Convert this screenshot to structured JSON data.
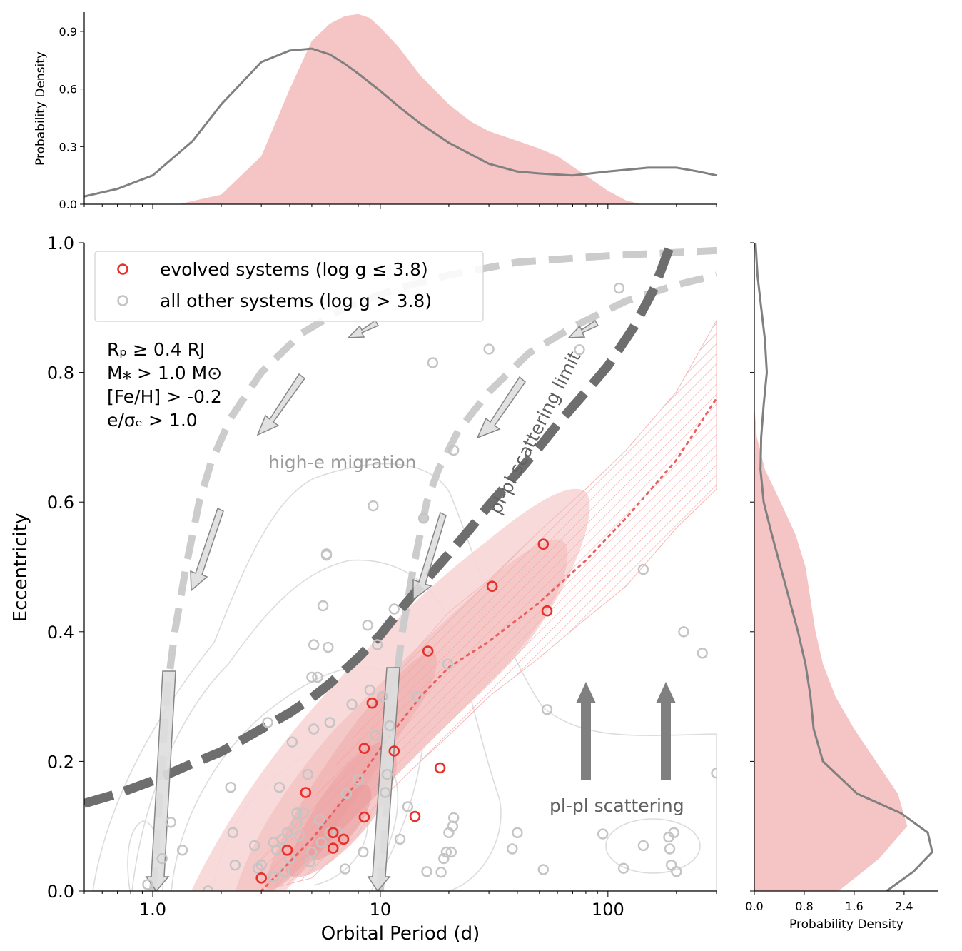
{
  "chart_data": {
    "type": "scatter",
    "title": "",
    "xlabel": "Orbital Period (d)",
    "ylabel": "Eccentricity",
    "xscale": "log",
    "xlim": [
      0.5,
      300
    ],
    "ylim": [
      0.0,
      1.0
    ],
    "x_tick_labels": [
      "1.0",
      "10",
      "100"
    ],
    "y_tick_labels": [
      "0.0",
      "0.2",
      "0.4",
      "0.6",
      "0.8",
      "1.0"
    ],
    "legend": {
      "position": "top-left",
      "entries": [
        {
          "label": "evolved systems (log g ≤ 3.8)",
          "color": "#e8302a"
        },
        {
          "label": "all other systems (log g > 3.8)",
          "color": "#c4c4c4"
        }
      ]
    },
    "criteria": [
      "Rₚ ≥ 0.4 R⁣J",
      "M⁎ > 1.0 M⊙",
      "[Fe/H] > -0.2",
      "e/σₑ > 1.0"
    ],
    "annotations": {
      "high_e": "high-e migration",
      "scatter_limit": "pl-pl scattering limit",
      "scattering": "pl-pl scattering"
    },
    "series": [
      {
        "name": "evolved systems (log g ≤ 3.8)",
        "color": "#e8302a",
        "points": [
          [
            3.0,
            0.02
          ],
          [
            3.9,
            0.063
          ],
          [
            4.7,
            0.152
          ],
          [
            6.2,
            0.09
          ],
          [
            6.2,
            0.066
          ],
          [
            6.9,
            0.08
          ],
          [
            8.5,
            0.114
          ],
          [
            8.5,
            0.22
          ],
          [
            9.2,
            0.29
          ],
          [
            11.5,
            0.216
          ],
          [
            14.2,
            0.115
          ],
          [
            16.2,
            0.37
          ],
          [
            18.3,
            0.19
          ],
          [
            31.0,
            0.47
          ],
          [
            52.0,
            0.535
          ],
          [
            54.0,
            0.432
          ]
        ]
      },
      {
        "name": "all other systems (log g > 3.8)",
        "color": "#c4c4c4",
        "points": [
          [
            0.95,
            0.01
          ],
          [
            1.1,
            0.05
          ],
          [
            1.2,
            0.106
          ],
          [
            1.35,
            0.063
          ],
          [
            1.75,
            0.0
          ],
          [
            2.2,
            0.16
          ],
          [
            2.25,
            0.09
          ],
          [
            2.3,
            0.04
          ],
          [
            2.8,
            0.07
          ],
          [
            2.9,
            0.035
          ],
          [
            3.0,
            0.04
          ],
          [
            3.2,
            0.26
          ],
          [
            3.4,
            0.022
          ],
          [
            3.4,
            0.075
          ],
          [
            3.5,
            0.063
          ],
          [
            3.6,
            0.16
          ],
          [
            3.7,
            0.08
          ],
          [
            3.8,
            0.03
          ],
          [
            3.9,
            0.09
          ],
          [
            4.0,
            0.05
          ],
          [
            4.1,
            0.23
          ],
          [
            4.3,
            0.12
          ],
          [
            4.3,
            0.105
          ],
          [
            4.4,
            0.085
          ],
          [
            4.6,
            0.12
          ],
          [
            4.8,
            0.18
          ],
          [
            4.9,
            0.045
          ],
          [
            5.0,
            0.33
          ],
          [
            5.0,
            0.06
          ],
          [
            5.1,
            0.25
          ],
          [
            5.1,
            0.38
          ],
          [
            5.3,
            0.33
          ],
          [
            5.4,
            0.11
          ],
          [
            5.5,
            0.075
          ],
          [
            5.6,
            0.44
          ],
          [
            5.8,
            0.52
          ],
          [
            5.8,
            0.518
          ],
          [
            5.9,
            0.376
          ],
          [
            6.0,
            0.26
          ],
          [
            6.0,
            0.09
          ],
          [
            6.5,
            0.09
          ],
          [
            7.0,
            0.034
          ],
          [
            7.1,
            0.15
          ],
          [
            7.5,
            0.288
          ],
          [
            8.0,
            0.172
          ],
          [
            8.4,
            0.06
          ],
          [
            8.8,
            0.41
          ],
          [
            9.0,
            0.31
          ],
          [
            9.3,
            0.594
          ],
          [
            9.5,
            0.24
          ],
          [
            9.7,
            0.38
          ],
          [
            10.2,
            0.3
          ],
          [
            10.5,
            0.152
          ],
          [
            10.7,
            0.18
          ],
          [
            11.0,
            0.255
          ],
          [
            11.5,
            0.435
          ],
          [
            12.2,
            0.08
          ],
          [
            13.2,
            0.13
          ],
          [
            14.5,
            0.3
          ],
          [
            15.5,
            0.575
          ],
          [
            16.0,
            0.03
          ],
          [
            18.5,
            0.029
          ],
          [
            19.0,
            0.05
          ],
          [
            19.5,
            0.06
          ],
          [
            19.8,
            0.35
          ],
          [
            20.0,
            0.09
          ],
          [
            20.5,
            0.06
          ],
          [
            20.8,
            0.1
          ],
          [
            21.0,
            0.68
          ],
          [
            21.0,
            0.113
          ],
          [
            17.0,
            0.815
          ],
          [
            30.0,
            0.836
          ],
          [
            38.0,
            0.065
          ],
          [
            40.0,
            0.09
          ],
          [
            52.0,
            0.033
          ],
          [
            54.0,
            0.28
          ],
          [
            75.0,
            0.835
          ],
          [
            95.0,
            0.088
          ],
          [
            112.0,
            0.93
          ],
          [
            117.0,
            0.035
          ],
          [
            143.0,
            0.07
          ],
          [
            143.0,
            0.496
          ],
          [
            185.0,
            0.083
          ],
          [
            187.0,
            0.065
          ],
          [
            190.0,
            0.04
          ],
          [
            195.0,
            0.09
          ],
          [
            200.0,
            0.03
          ],
          [
            215.0,
            0.4
          ],
          [
            260.0,
            0.367
          ],
          [
            300.0,
            0.182
          ]
        ]
      }
    ],
    "top_panel": {
      "type": "area",
      "ylabel": "Probability Density",
      "ylim": [
        0.0,
        1.0
      ],
      "y_tick_labels": [
        "0.0",
        "0.3",
        "0.6",
        "0.9"
      ],
      "evolved_density": {
        "period": [
          1.3,
          2.0,
          3.0,
          4.0,
          5.0,
          6.0,
          7.0,
          8.0,
          9.0,
          10.0,
          12.0,
          15.0,
          20.0,
          25.0,
          30.0,
          40.0,
          50.0,
          60.0,
          80.0,
          100.0,
          120.0,
          140.0
        ],
        "density": [
          0.0,
          0.05,
          0.25,
          0.6,
          0.85,
          0.94,
          0.98,
          0.99,
          0.97,
          0.92,
          0.82,
          0.67,
          0.52,
          0.43,
          0.38,
          0.33,
          0.29,
          0.25,
          0.15,
          0.07,
          0.02,
          0.0
        ]
      },
      "other_density": {
        "period": [
          0.5,
          0.7,
          1.0,
          1.5,
          2.0,
          3.0,
          4.0,
          5.0,
          6.0,
          7.0,
          8.0,
          10.0,
          12.0,
          15.0,
          20.0,
          30.0,
          40.0,
          50.0,
          70.0,
          100.0,
          150.0,
          200.0,
          250.0,
          300.0
        ],
        "density": [
          0.04,
          0.08,
          0.15,
          0.33,
          0.52,
          0.74,
          0.8,
          0.81,
          0.78,
          0.73,
          0.68,
          0.59,
          0.51,
          0.42,
          0.32,
          0.21,
          0.17,
          0.16,
          0.15,
          0.17,
          0.19,
          0.19,
          0.17,
          0.15
        ]
      }
    },
    "right_panel": {
      "type": "area",
      "xlabel": "Probability Density",
      "xlim": [
        0.0,
        2.95
      ],
      "x_tick_labels": [
        "0.0",
        "0.8",
        "1.6",
        "2.4"
      ],
      "evolved_density": {
        "ecc": [
          0.0,
          0.05,
          0.1,
          0.15,
          0.2,
          0.25,
          0.3,
          0.35,
          0.4,
          0.45,
          0.5,
          0.55,
          0.6,
          0.65,
          0.7,
          0.75
        ],
        "density": [
          1.35,
          2.0,
          2.45,
          2.3,
          1.95,
          1.6,
          1.3,
          1.1,
          0.98,
          0.9,
          0.82,
          0.66,
          0.42,
          0.17,
          0.04,
          0.0
        ]
      },
      "other_density": {
        "ecc": [
          0.0,
          0.03,
          0.06,
          0.09,
          0.12,
          0.15,
          0.2,
          0.25,
          0.3,
          0.35,
          0.4,
          0.45,
          0.5,
          0.55,
          0.6,
          0.65,
          0.7,
          0.75,
          0.8,
          0.85,
          0.9,
          0.95,
          1.0
        ],
        "density": [
          2.12,
          2.55,
          2.85,
          2.78,
          2.35,
          1.65,
          1.1,
          0.95,
          0.9,
          0.82,
          0.7,
          0.56,
          0.42,
          0.28,
          0.15,
          0.1,
          0.11,
          0.15,
          0.2,
          0.17,
          0.11,
          0.05,
          0.02
        ]
      }
    },
    "curves": {
      "scattering_limit": {
        "period": [
          0.5,
          0.7,
          1.0,
          1.5,
          2.0,
          3.0,
          4.0,
          5.0,
          6.0,
          8.0,
          10.0,
          12.0,
          15.0,
          20.0,
          25.0,
          30.0,
          40.0,
          50.0,
          60.0,
          80.0,
          100.0,
          130.0,
          160.0,
          190.0
        ],
        "ecc": [
          0.135,
          0.15,
          0.17,
          0.197,
          0.215,
          0.25,
          0.275,
          0.298,
          0.32,
          0.36,
          0.395,
          0.43,
          0.47,
          0.52,
          0.56,
          0.595,
          0.645,
          0.685,
          0.72,
          0.77,
          0.81,
          0.87,
          0.93,
          1.0
        ]
      },
      "high_e_tracks": [
        {
          "period": [
            1.0,
            1.05,
            1.1,
            1.15,
            1.25,
            1.4,
            1.6,
            1.8,
            2.2,
            3.0,
            4.5,
            7.0,
            12.0,
            20.0,
            40.0,
            100.0,
            200.0,
            300.0
          ],
          "ecc": [
            0.0,
            0.1,
            0.2,
            0.3,
            0.4,
            0.5,
            0.6,
            0.66,
            0.73,
            0.8,
            0.86,
            0.9,
            0.93,
            0.95,
            0.97,
            0.98,
            0.985,
            0.988
          ]
        },
        {
          "period": [
            10.0,
            10.5,
            11.0,
            11.5,
            12.5,
            14.0,
            16.0,
            18.0,
            22.0,
            30.0,
            45.0,
            70.0,
            120.0,
            200.0,
            300.0
          ],
          "ecc": [
            0.0,
            0.1,
            0.2,
            0.3,
            0.4,
            0.5,
            0.6,
            0.65,
            0.71,
            0.77,
            0.83,
            0.87,
            0.91,
            0.935,
            0.95
          ]
        }
      ],
      "median_trend": {
        "period": [
          3.0,
          5.0,
          8.0,
          10.0,
          15.0,
          20.0,
          30.0,
          50.0,
          80.0,
          120.0,
          200.0,
          300.0
        ],
        "ecc": [
          0.0,
          0.08,
          0.17,
          0.22,
          0.3,
          0.345,
          0.385,
          0.445,
          0.51,
          0.575,
          0.665,
          0.76
        ]
      },
      "band_upper": {
        "period": [
          3.0,
          5.0,
          8.0,
          10.0,
          15.0,
          20.0,
          30.0,
          50.0,
          80.0,
          120.0,
          200.0,
          300.0
        ],
        "ecc": [
          0.05,
          0.14,
          0.25,
          0.3,
          0.38,
          0.43,
          0.48,
          0.555,
          0.62,
          0.68,
          0.77,
          0.88
        ]
      },
      "band_lower": {
        "period": [
          3.0,
          5.0,
          8.0,
          10.0,
          15.0,
          20.0,
          30.0,
          50.0,
          80.0,
          120.0,
          200.0,
          300.0
        ],
        "ecc": [
          0.0,
          0.02,
          0.09,
          0.14,
          0.2,
          0.24,
          0.3,
          0.36,
          0.42,
          0.47,
          0.56,
          0.62
        ]
      }
    }
  }
}
